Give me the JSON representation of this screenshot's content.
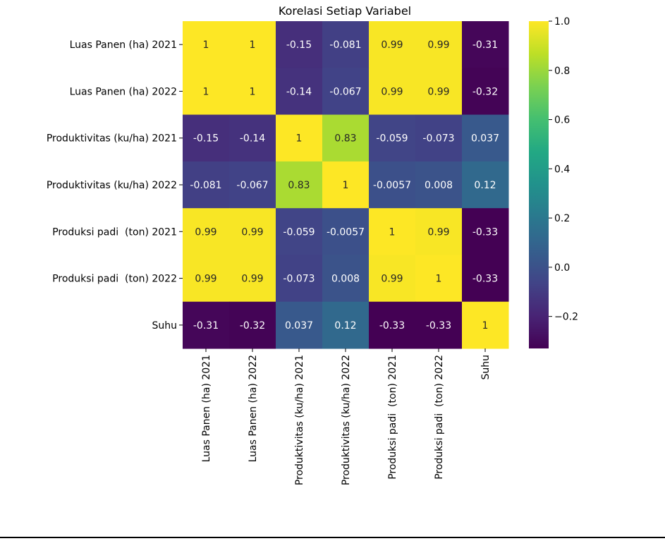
{
  "chart_data": {
    "type": "heatmap",
    "title": "Korelasi Setiap Variabel",
    "row_labels": [
      "Luas Panen (ha) 2021",
      "Luas Panen (ha) 2022",
      "Produktivitas (ku/ha) 2021",
      "Produktivitas (ku/ha) 2022",
      "Produksi padi  (ton) 2021",
      "Produksi padi  (ton) 2022",
      "Suhu"
    ],
    "col_labels": [
      "Luas Panen (ha) 2021",
      "Luas Panen (ha) 2022",
      "Produktivitas (ku/ha) 2021",
      "Produktivitas (ku/ha) 2022",
      "Produksi padi  (ton) 2021",
      "Produksi padi  (ton) 2022",
      "Suhu"
    ],
    "values": [
      [
        1,
        1,
        -0.15,
        -0.081,
        0.99,
        0.99,
        -0.31
      ],
      [
        1,
        1,
        -0.14,
        -0.067,
        0.99,
        0.99,
        -0.32
      ],
      [
        -0.15,
        -0.14,
        1,
        0.83,
        -0.059,
        -0.073,
        0.037
      ],
      [
        -0.081,
        -0.067,
        0.83,
        1,
        -0.0057,
        0.008,
        0.12
      ],
      [
        0.99,
        0.99,
        -0.059,
        -0.0057,
        1,
        0.99,
        -0.33
      ],
      [
        0.99,
        0.99,
        -0.073,
        0.008,
        0.99,
        1,
        -0.33
      ],
      [
        -0.31,
        -0.32,
        0.037,
        0.12,
        -0.33,
        -0.33,
        1
      ]
    ],
    "annotations": [
      [
        "1",
        "1",
        "-0.15",
        "-0.081",
        "0.99",
        "0.99",
        "-0.31"
      ],
      [
        "1",
        "1",
        "-0.14",
        "-0.067",
        "0.99",
        "0.99",
        "-0.32"
      ],
      [
        "-0.15",
        "-0.14",
        "1",
        "0.83",
        "-0.059",
        "-0.073",
        "0.037"
      ],
      [
        "-0.081",
        "-0.067",
        "0.83",
        "1",
        "-0.0057",
        "0.008",
        "0.12"
      ],
      [
        "0.99",
        "0.99",
        "-0.059",
        "-0.0057",
        "1",
        "0.99",
        "-0.33"
      ],
      [
        "0.99",
        "0.99",
        "-0.073",
        "0.008",
        "0.99",
        "1",
        "-0.33"
      ],
      [
        "-0.31",
        "-0.32",
        "0.037",
        "0.12",
        "-0.33",
        "-0.33",
        "1"
      ]
    ],
    "colormap": "viridis",
    "vmin": -0.33,
    "vmax": 1.0,
    "colorbar_ticks": [
      1.0,
      0.8,
      0.6,
      0.4,
      0.2,
      0.0,
      -0.2
    ],
    "colorbar_tick_labels": [
      "1.0",
      "0.8",
      "0.6",
      "0.4",
      "0.2",
      "0.0",
      "−0.2"
    ]
  }
}
